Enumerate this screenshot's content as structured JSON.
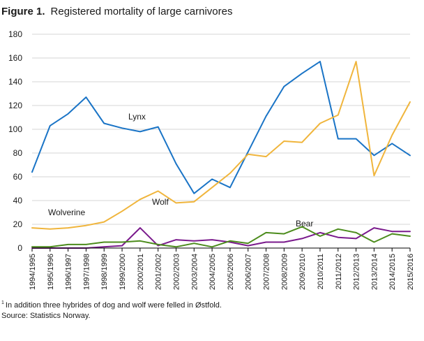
{
  "title_prefix": "Figure 1.",
  "title": "Registered mortality of large carnivores",
  "footnote_mark": "1",
  "footnote": "In addition three hybrides of dog and wolf were felled in Østfold.",
  "source": "Source: Statistics Norway.",
  "chart_data": {
    "type": "line",
    "ylim": [
      0,
      180
    ],
    "yticks": [
      0,
      20,
      40,
      60,
      80,
      100,
      120,
      140,
      160,
      180
    ],
    "grid": true,
    "categories": [
      "1994/1995",
      "1995/1996",
      "1996/1997",
      "1997/1998",
      "1998/1999",
      "1999/2000",
      "2000/2001",
      "2001/2002",
      "2002/2003",
      "2003/2004",
      "2004/2005",
      "2005/2006",
      "2006/2007",
      "2007/2008",
      "2008/2009",
      "2009/2010",
      "2010/2011",
      "2011/2012",
      "2012/2013",
      "2013/2014",
      "2014/2015",
      "2015/2016"
    ],
    "series": [
      {
        "name": "Lynx",
        "color": "#1a74c6",
        "values": [
          64,
          103,
          113,
          127,
          105,
          101,
          98,
          102,
          71,
          46,
          58,
          51,
          81,
          111,
          136,
          147,
          157,
          92,
          92,
          78,
          88,
          78
        ]
      },
      {
        "name": "Wolverine",
        "color": "#f0b53c",
        "values": [
          17,
          16,
          17,
          19,
          22,
          31,
          41,
          48,
          38,
          39,
          51,
          63,
          79,
          77,
          90,
          89,
          105,
          112,
          157,
          61,
          95,
          123
        ]
      },
      {
        "name": "Wolf",
        "color": "#7a1a8c",
        "values": [
          0,
          0,
          0,
          0,
          1,
          2,
          17,
          2,
          7,
          6,
          7,
          5,
          2,
          5,
          5,
          8,
          13,
          9,
          8,
          17,
          14,
          14
        ]
      },
      {
        "name": "Bear",
        "color": "#4c8c1c",
        "values": [
          1,
          1,
          3,
          3,
          5,
          5,
          6,
          3,
          1,
          4,
          1,
          6,
          4,
          13,
          12,
          18,
          10,
          16,
          13,
          5,
          12,
          10
        ]
      }
    ]
  }
}
